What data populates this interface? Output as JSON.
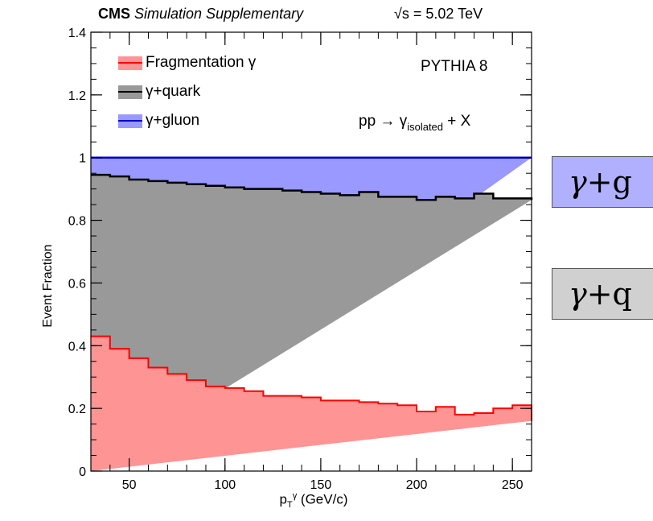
{
  "header": {
    "experiment": "CMS",
    "tag": "Simulation Supplementary",
    "energy": "√s = 5.02 TeV"
  },
  "annotations": {
    "generator": "PYTHIA 8",
    "process_main": "pp → γ",
    "process_sub": "isolated",
    "process_tail": " + X"
  },
  "side_labels": [
    {
      "symbol": "γ",
      "text": "+g",
      "color": "#b0b0ff"
    },
    {
      "symbol": "γ",
      "text": "+q",
      "color": "#d0d0d0"
    }
  ],
  "colors": {
    "fragmentation_fill": "#ff9494",
    "fragmentation_line": "#ff0000",
    "quark_fill": "#999999",
    "quark_line": "#000000",
    "gluon_fill": "#9999ff",
    "gluon_line": "#0000cc"
  },
  "chart_data": {
    "type": "area",
    "title": "",
    "xlabel_main": "p",
    "xlabel_sub": "T",
    "xlabel_sup": "γ",
    "xlabel_unit": " (GeV/c)",
    "ylabel": "Event Fraction",
    "xlim": [
      30,
      260
    ],
    "ylim": [
      0,
      1.4
    ],
    "x_ticks": [
      50,
      100,
      150,
      200,
      250
    ],
    "y_ticks": [
      0,
      0.2,
      0.4,
      0.6,
      0.8,
      1,
      1.2,
      1.4
    ],
    "y_tick_labels": [
      "0",
      "0.2",
      "0.4",
      "0.6",
      "0.8",
      "1",
      "1.2",
      "1.4"
    ],
    "bin_edges": [
      30,
      40,
      50,
      60,
      70,
      80,
      90,
      100,
      110,
      120,
      130,
      140,
      150,
      160,
      170,
      180,
      190,
      200,
      210,
      220,
      230,
      240,
      250,
      260
    ],
    "legend_placement": "top-left",
    "series": [
      {
        "name": "Fragmentation γ",
        "values": [
          0.43,
          0.39,
          0.36,
          0.33,
          0.31,
          0.29,
          0.27,
          0.265,
          0.255,
          0.24,
          0.24,
          0.235,
          0.225,
          0.225,
          0.22,
          0.215,
          0.21,
          0.19,
          0.205,
          0.18,
          0.185,
          0.2,
          0.21,
          0.16
        ]
      },
      {
        "name": "γ+quark",
        "values": [
          0.945,
          0.94,
          0.93,
          0.925,
          0.92,
          0.915,
          0.91,
          0.905,
          0.9,
          0.9,
          0.895,
          0.89,
          0.885,
          0.88,
          0.89,
          0.875,
          0.875,
          0.865,
          0.875,
          0.87,
          0.885,
          0.87,
          0.87,
          0.865
        ]
      },
      {
        "name": "γ+gluon",
        "values": [
          1,
          1,
          1,
          1,
          1,
          1,
          1,
          1,
          1,
          1,
          1,
          1,
          1,
          1,
          1,
          1,
          1,
          1,
          1,
          1,
          1,
          1,
          1,
          1
        ]
      }
    ]
  }
}
